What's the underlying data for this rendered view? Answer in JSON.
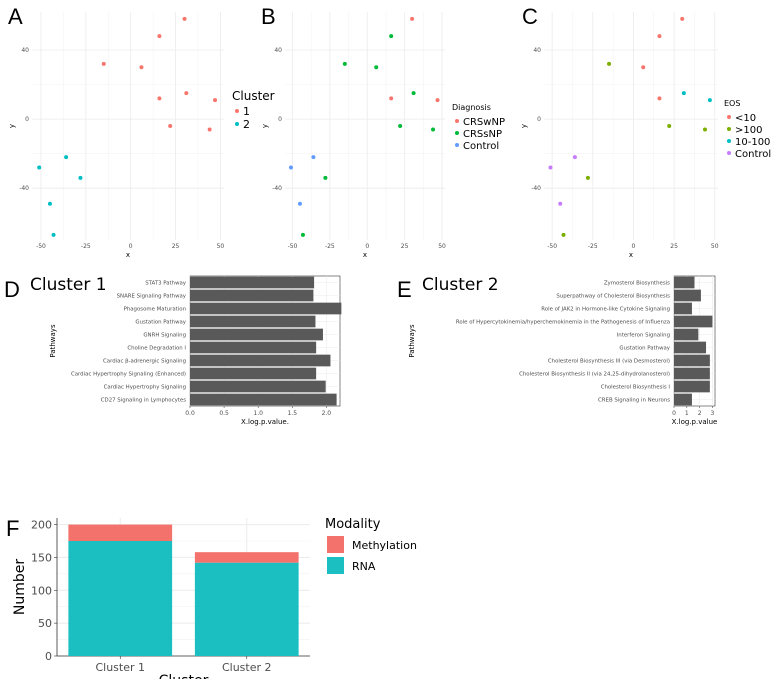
{
  "chart_data": [
    {
      "panel": "A",
      "type": "scatter",
      "xlabel": "x",
      "ylabel": "y",
      "xlim": [
        -55,
        52
      ],
      "ylim": [
        -70,
        62
      ],
      "xticks": [
        -50,
        -25,
        0,
        25,
        50
      ],
      "yticks": [
        -40,
        0,
        40
      ],
      "legend": {
        "title": "Cluster",
        "position": "right",
        "entries": [
          {
            "label": "1",
            "color": "#F8766D"
          },
          {
            "label": "2",
            "color": "#00BFC4"
          }
        ]
      },
      "points": [
        {
          "x": 30,
          "y": 58,
          "group": "1"
        },
        {
          "x": 16,
          "y": 48,
          "group": "1"
        },
        {
          "x": -15,
          "y": 32,
          "group": "1"
        },
        {
          "x": 6,
          "y": 30,
          "group": "1"
        },
        {
          "x": 16,
          "y": 12,
          "group": "1"
        },
        {
          "x": 31,
          "y": 15,
          "group": "1"
        },
        {
          "x": 47,
          "y": 11,
          "group": "1"
        },
        {
          "x": 22,
          "y": -4,
          "group": "1"
        },
        {
          "x": 44,
          "y": -6,
          "group": "1"
        },
        {
          "x": -36,
          "y": -22,
          "group": "2"
        },
        {
          "x": -51,
          "y": -28,
          "group": "2"
        },
        {
          "x": -28,
          "y": -34,
          "group": "2"
        },
        {
          "x": -45,
          "y": -49,
          "group": "2"
        },
        {
          "x": -43,
          "y": -67,
          "group": "2"
        }
      ]
    },
    {
      "panel": "B",
      "type": "scatter",
      "xlabel": "x",
      "ylabel": "y",
      "xlim": [
        -55,
        52
      ],
      "ylim": [
        -70,
        62
      ],
      "xticks": [
        -50,
        -25,
        0,
        25,
        50
      ],
      "yticks": [
        -40,
        0,
        40
      ],
      "legend": {
        "title": "Diagnosis",
        "position": "right",
        "entries": [
          {
            "label": "CRSwNP",
            "color": "#F8766D"
          },
          {
            "label": "CRSsNP",
            "color": "#00BA38"
          },
          {
            "label": "Control",
            "color": "#619CFF"
          }
        ]
      },
      "points": [
        {
          "x": 30,
          "y": 58,
          "group": "CRSwNP"
        },
        {
          "x": 16,
          "y": 48,
          "group": "CRSsNP"
        },
        {
          "x": -15,
          "y": 32,
          "group": "CRSsNP"
        },
        {
          "x": 6,
          "y": 30,
          "group": "CRSsNP"
        },
        {
          "x": 16,
          "y": 12,
          "group": "CRSwNP"
        },
        {
          "x": 31,
          "y": 15,
          "group": "CRSsNP"
        },
        {
          "x": 47,
          "y": 11,
          "group": "CRSwNP"
        },
        {
          "x": 22,
          "y": -4,
          "group": "CRSsNP"
        },
        {
          "x": 44,
          "y": -6,
          "group": "CRSsNP"
        },
        {
          "x": -36,
          "y": -22,
          "group": "Control"
        },
        {
          "x": -51,
          "y": -28,
          "group": "Control"
        },
        {
          "x": -28,
          "y": -34,
          "group": "CRSsNP"
        },
        {
          "x": -45,
          "y": -49,
          "group": "Control"
        },
        {
          "x": -43,
          "y": -67,
          "group": "CRSsNP"
        }
      ]
    },
    {
      "panel": "C",
      "type": "scatter",
      "xlabel": "x",
      "ylabel": "y",
      "xlim": [
        -55,
        52
      ],
      "ylim": [
        -70,
        62
      ],
      "xticks": [
        -50,
        -25,
        0,
        25,
        50
      ],
      "yticks": [
        -40,
        0,
        40
      ],
      "legend": {
        "title": "EOS",
        "position": "right",
        "entries": [
          {
            "label": "<10",
            "color": "#F8766D"
          },
          {
            "label": ">100",
            "color": "#7CAE00"
          },
          {
            "label": "10-100",
            "color": "#00BFC4"
          },
          {
            "label": "Control",
            "color": "#C77CFF"
          }
        ]
      },
      "points": [
        {
          "x": 30,
          "y": 58,
          "group": "<10"
        },
        {
          "x": 16,
          "y": 48,
          "group": "<10"
        },
        {
          "x": -15,
          "y": 32,
          "group": ">100"
        },
        {
          "x": 6,
          "y": 30,
          "group": "<10"
        },
        {
          "x": 16,
          "y": 12,
          "group": "<10"
        },
        {
          "x": 31,
          "y": 15,
          "group": "10-100"
        },
        {
          "x": 47,
          "y": 11,
          "group": "10-100"
        },
        {
          "x": 22,
          "y": -4,
          "group": ">100"
        },
        {
          "x": 44,
          "y": -6,
          "group": ">100"
        },
        {
          "x": -36,
          "y": -22,
          "group": "Control"
        },
        {
          "x": -51,
          "y": -28,
          "group": "Control"
        },
        {
          "x": -28,
          "y": -34,
          "group": ">100"
        },
        {
          "x": -45,
          "y": -49,
          "group": "Control"
        },
        {
          "x": -43,
          "y": -67,
          "group": ">100"
        }
      ]
    },
    {
      "panel": "D",
      "type": "bar",
      "orientation": "horizontal",
      "title": "Cluster 1",
      "xlabel": "X.log.p.value.",
      "ylabel": "Pathways",
      "xlim": [
        0,
        2.2
      ],
      "xticks": [
        "0.0",
        "0.5",
        "1.0",
        "1.5",
        "2.0"
      ],
      "categories": [
        "STAT3 Pathway",
        "SNARE Signaling Pathway",
        "Phagosome Maturation",
        "Gustation Pathway",
        "GNRH Signaling",
        "Choline Degradation I",
        "Cardiac β-adrenergic Signaling",
        "Cardiac Hypertrophy Signaling (Enhanced)",
        "Cardiac Hypertrophy Signaling",
        "CD27 Signaling in Lymphocytes"
      ],
      "values": [
        1.82,
        1.81,
        2.22,
        1.84,
        1.95,
        1.85,
        2.06,
        1.85,
        1.99,
        2.15
      ],
      "color": "#595959"
    },
    {
      "panel": "E",
      "type": "bar",
      "orientation": "horizontal",
      "title": "Cluster 2",
      "xlabel": "X.log.p.value",
      "ylabel": "Pathways",
      "xlim": [
        0,
        3.2
      ],
      "xticks": [
        "0",
        "1",
        "2",
        "3"
      ],
      "categories": [
        "Zymosterol Biosynthesis",
        "Superpathway of Cholesterol Biosynthesis",
        "Role of JAK2 in Hormone-like Cytokine Signaling",
        "Role of Hypercytokinemia/hyperchemokinemia in the Pathogenesis of Influenza",
        "Interferon Signaling",
        "Gustation Pathway",
        "Cholesterol Biosynthesis III (via Desmosterol)",
        "Cholesterol Biosynthesis II (via 24,25-dihydrolanosterol)",
        "Cholesterol Biosynthesis I",
        "CREB Signaling in Neurons"
      ],
      "values": [
        1.6,
        2.1,
        1.4,
        3.0,
        1.9,
        2.5,
        2.8,
        2.8,
        2.8,
        1.4
      ],
      "color": "#595959"
    },
    {
      "panel": "F",
      "type": "bar",
      "orientation": "vertical",
      "stacked": true,
      "xlabel": "Cluster",
      "ylabel": "Number",
      "ylim": [
        0,
        210
      ],
      "yticks": [
        0,
        50,
        100,
        150,
        200
      ],
      "categories": [
        "Cluster 1",
        "Cluster 2"
      ],
      "series": [
        {
          "name": "RNA",
          "values": [
            175,
            142
          ],
          "color": "#1BBFC1"
        },
        {
          "name": "Methylation",
          "values": [
            25,
            16
          ],
          "color": "#F3736C"
        }
      ],
      "legend": {
        "title": "Modality",
        "position": "right",
        "entries": [
          {
            "label": "Methylation",
            "color": "#F3736C"
          },
          {
            "label": "RNA",
            "color": "#1BBFC1"
          }
        ]
      }
    }
  ],
  "panel_letters": [
    "A",
    "B",
    "C",
    "D",
    "E",
    "F"
  ]
}
